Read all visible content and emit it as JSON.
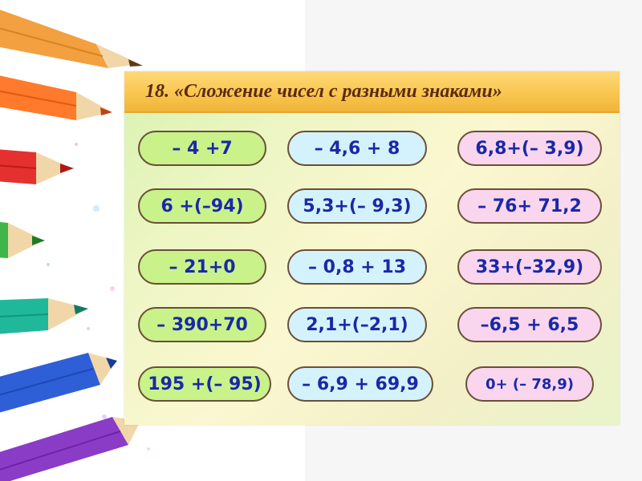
{
  "slide": {
    "title": "18. «Сложение чисел с разными знаками»"
  },
  "colors": {
    "title_bar": "#f8c44c",
    "title_text": "#5a2a10",
    "expression_text": "#1a28a8",
    "pill_green": "#c9f28a",
    "pill_blue": "#d4f2fb",
    "pill_pink": "#f9d6ee"
  },
  "expressions": {
    "column_1": [
      "– 4 +7",
      "6 +(–94)",
      "– 21+0",
      "– 390+70",
      "195 +(– 95)"
    ],
    "column_2": [
      "– 4,6 + 8",
      "5,3+(– 9,3)",
      "– 0,8 + 13",
      "2,1+(–2,1)",
      "– 6,9 + 69,9"
    ],
    "column_3": [
      "6,8+(– 3,9)",
      "– 76+ 71,2",
      "33+(–32,9)",
      "–6,5 + 6,5",
      "0+ (– 78,9)"
    ]
  },
  "decoration": {
    "pencil_colors": [
      "#f2a040",
      "#ff7a2a",
      "#e53030",
      "#3fb54a",
      "#1fb89a",
      "#2f5fd6",
      "#8a3cc6"
    ]
  }
}
